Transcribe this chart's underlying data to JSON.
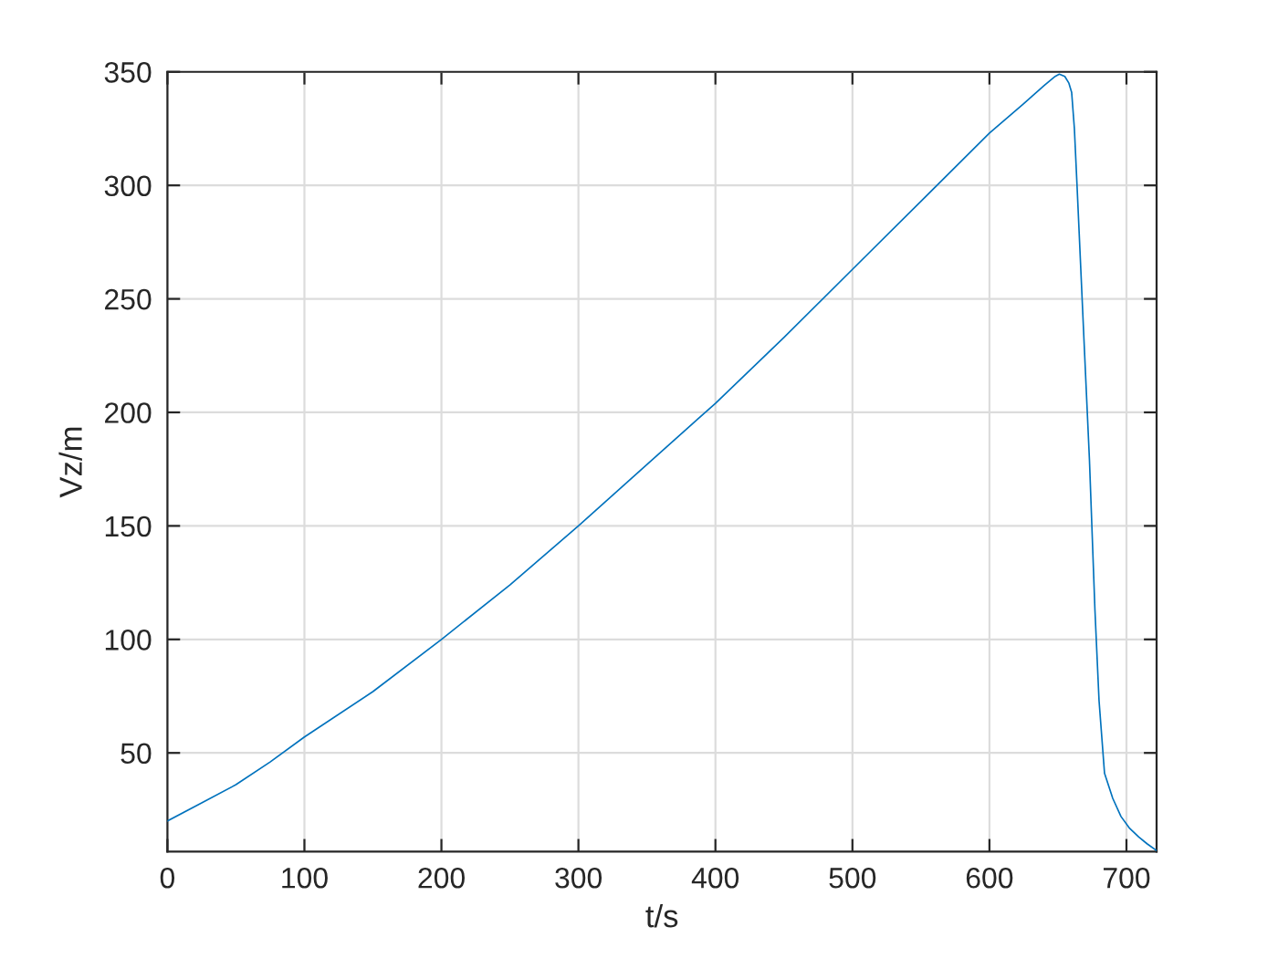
{
  "chart_data": {
    "type": "line",
    "xlabel": "t/s",
    "ylabel": "Vz/m",
    "x": [
      0,
      25,
      50,
      75,
      100,
      150,
      200,
      250,
      300,
      350,
      400,
      450,
      500,
      550,
      600,
      625,
      640,
      648,
      651,
      655,
      658,
      660,
      662,
      664,
      669,
      673,
      677,
      680,
      684,
      690,
      696,
      702,
      709,
      715,
      722
    ],
    "values": [
      20,
      28,
      36,
      46,
      57,
      77,
      100,
      124,
      150,
      177,
      204,
      233,
      263,
      293,
      323,
      336,
      344,
      348,
      349,
      348,
      345,
      341,
      325,
      299,
      232,
      179,
      113,
      73,
      41,
      30,
      22,
      17,
      13,
      10,
      7
    ],
    "color": "#0072bd",
    "xlim": [
      0,
      722
    ],
    "ylim": [
      6.5,
      350
    ],
    "xticks": [
      0,
      100,
      200,
      300,
      400,
      500,
      600,
      700
    ],
    "yticks": [
      50,
      100,
      150,
      200,
      250,
      300,
      350
    ],
    "grid": true
  }
}
